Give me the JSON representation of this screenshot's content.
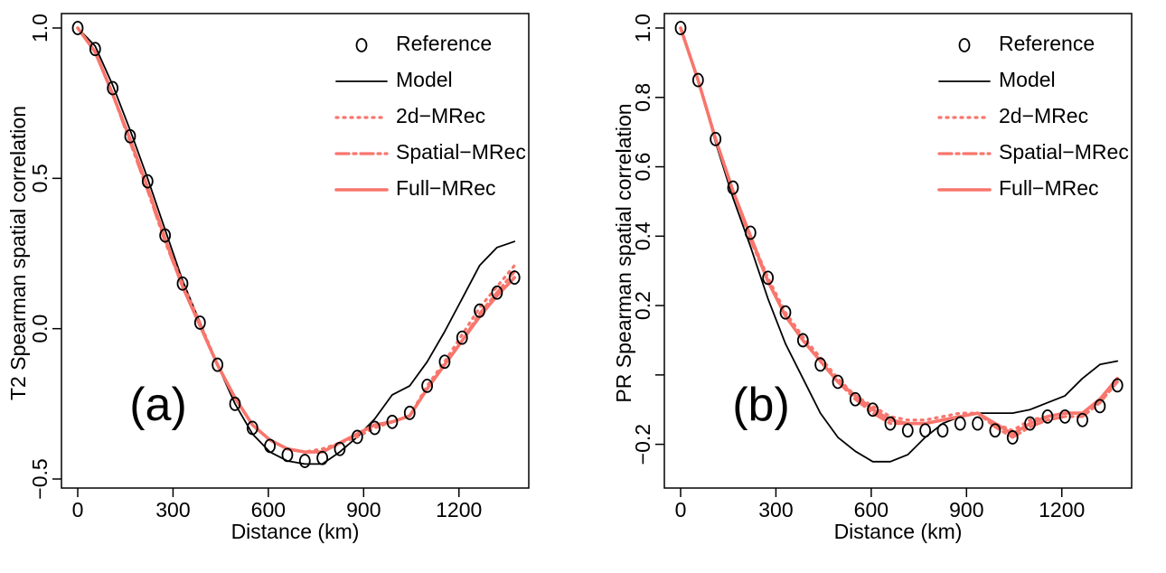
{
  "figure": {
    "legend_labels": [
      "Reference",
      "Model",
      "2d−MRec",
      "Spatial−MRec",
      "Full−MRec"
    ]
  },
  "colors": {
    "reference": "#000000",
    "model": "#000000",
    "mrec": "#F8766D"
  },
  "chart_data": [
    {
      "type": "line",
      "panel_label": "(a)",
      "xlabel": "Distance (km)",
      "ylabel": "T2 Spearman spatial correlation",
      "xlim": [
        0,
        1380
      ],
      "ylim": [
        -0.5,
        1.0
      ],
      "x_ticks": [
        0,
        300,
        600,
        900,
        1200
      ],
      "x_tick_labels": [
        "0",
        "300",
        "600",
        "900",
        "1200"
      ],
      "y_ticks": [
        -0.5,
        0.0,
        0.5,
        1.0
      ],
      "y_tick_labels": [
        "−0.5",
        "0.0",
        "0.5",
        "1.0"
      ],
      "legend_position": "top-right",
      "grid": false,
      "x": [
        0,
        55,
        110,
        165,
        220,
        275,
        330,
        385,
        440,
        495,
        550,
        605,
        660,
        715,
        770,
        825,
        880,
        935,
        990,
        1045,
        1100,
        1155,
        1210,
        1265,
        1320,
        1375
      ],
      "series": [
        {
          "name": "Reference",
          "style": "points",
          "values": [
            1.0,
            0.93,
            0.8,
            0.64,
            0.49,
            0.31,
            0.15,
            0.02,
            -0.12,
            -0.25,
            -0.33,
            -0.39,
            -0.42,
            -0.44,
            -0.43,
            -0.4,
            -0.36,
            -0.33,
            -0.31,
            -0.28,
            -0.19,
            -0.11,
            -0.03,
            0.06,
            0.12,
            0.17
          ]
        },
        {
          "name": "Model",
          "style": "solid-thin",
          "values": [
            1.0,
            0.94,
            0.81,
            0.66,
            0.5,
            0.33,
            0.16,
            0.02,
            -0.12,
            -0.25,
            -0.35,
            -0.41,
            -0.44,
            -0.45,
            -0.45,
            -0.41,
            -0.36,
            -0.3,
            -0.22,
            -0.19,
            -0.11,
            -0.01,
            0.1,
            0.21,
            0.27,
            0.29
          ]
        },
        {
          "name": "2d−MRec",
          "style": "dotted",
          "values": [
            1.0,
            0.92,
            0.78,
            0.63,
            0.47,
            0.3,
            0.15,
            0.02,
            -0.12,
            -0.23,
            -0.32,
            -0.37,
            -0.4,
            -0.41,
            -0.4,
            -0.38,
            -0.36,
            -0.33,
            -0.31,
            -0.29,
            -0.19,
            -0.11,
            -0.02,
            0.07,
            0.14,
            0.21
          ]
        },
        {
          "name": "Spatial−MRec",
          "style": "dashdot",
          "values": [
            1.0,
            0.92,
            0.78,
            0.62,
            0.46,
            0.29,
            0.14,
            0.01,
            -0.12,
            -0.23,
            -0.32,
            -0.37,
            -0.4,
            -0.41,
            -0.41,
            -0.38,
            -0.35,
            -0.32,
            -0.31,
            -0.29,
            -0.2,
            -0.12,
            -0.04,
            0.05,
            0.12,
            0.19
          ]
        },
        {
          "name": "Full−MRec",
          "style": "solid-thick",
          "values": [
            1.0,
            0.92,
            0.78,
            0.63,
            0.47,
            0.3,
            0.14,
            0.01,
            -0.12,
            -0.23,
            -0.32,
            -0.37,
            -0.4,
            -0.41,
            -0.41,
            -0.38,
            -0.35,
            -0.32,
            -0.31,
            -0.29,
            -0.2,
            -0.12,
            -0.04,
            0.04,
            0.11,
            0.17
          ]
        }
      ]
    },
    {
      "type": "line",
      "panel_label": "(b)",
      "xlabel": "Distance (km)",
      "ylabel": "PR Spearman spatial correlation",
      "xlim": [
        0,
        1380
      ],
      "ylim": [
        -0.3,
        1.0
      ],
      "x_ticks": [
        0,
        300,
        600,
        900,
        1200
      ],
      "x_tick_labels": [
        "0",
        "300",
        "600",
        "900",
        "1200"
      ],
      "y_ticks": [
        -0.2,
        0.0,
        0.2,
        0.4,
        0.6,
        0.8,
        1.0
      ],
      "y_tick_labels": [
        "−0.2",
        "",
        "0.2",
        "0.4",
        "0.6",
        "0.8",
        "1.0"
      ],
      "legend_position": "top-right",
      "grid": false,
      "x": [
        0,
        55,
        110,
        165,
        220,
        275,
        330,
        385,
        440,
        495,
        550,
        605,
        660,
        715,
        770,
        825,
        880,
        935,
        990,
        1045,
        1100,
        1155,
        1210,
        1265,
        1320,
        1375
      ],
      "series": [
        {
          "name": "Reference",
          "style": "points",
          "values": [
            1.0,
            0.85,
            0.68,
            0.54,
            0.41,
            0.28,
            0.18,
            0.1,
            0.03,
            -0.02,
            -0.07,
            -0.1,
            -0.14,
            -0.16,
            -0.16,
            -0.16,
            -0.14,
            -0.14,
            -0.16,
            -0.18,
            -0.14,
            -0.12,
            -0.12,
            -0.13,
            -0.09,
            -0.03
          ]
        },
        {
          "name": "Model",
          "style": "solid-thin",
          "values": [
            1.0,
            0.85,
            0.67,
            0.51,
            0.37,
            0.22,
            0.09,
            -0.01,
            -0.11,
            -0.18,
            -0.22,
            -0.25,
            -0.25,
            -0.23,
            -0.18,
            -0.14,
            -0.12,
            -0.11,
            -0.11,
            -0.11,
            -0.1,
            -0.08,
            -0.06,
            -0.01,
            0.03,
            0.04
          ]
        },
        {
          "name": "2d−MRec",
          "style": "dotted",
          "values": [
            1.0,
            0.85,
            0.68,
            0.53,
            0.4,
            0.28,
            0.18,
            0.11,
            0.05,
            -0.01,
            -0.06,
            -0.09,
            -0.12,
            -0.13,
            -0.13,
            -0.12,
            -0.11,
            -0.11,
            -0.14,
            -0.16,
            -0.13,
            -0.12,
            -0.11,
            -0.11,
            -0.07,
            -0.01
          ]
        },
        {
          "name": "Spatial−MRec",
          "style": "dashdot",
          "values": [
            1.0,
            0.85,
            0.68,
            0.53,
            0.39,
            0.27,
            0.17,
            0.1,
            0.04,
            -0.02,
            -0.07,
            -0.11,
            -0.14,
            -0.14,
            -0.14,
            -0.13,
            -0.12,
            -0.11,
            -0.15,
            -0.18,
            -0.15,
            -0.13,
            -0.12,
            -0.12,
            -0.08,
            -0.02
          ]
        },
        {
          "name": "Full−MRec",
          "style": "solid-thick",
          "values": [
            1.0,
            0.85,
            0.68,
            0.53,
            0.4,
            0.27,
            0.17,
            0.1,
            0.04,
            -0.02,
            -0.06,
            -0.1,
            -0.13,
            -0.14,
            -0.14,
            -0.13,
            -0.12,
            -0.11,
            -0.14,
            -0.17,
            -0.14,
            -0.12,
            -0.11,
            -0.11,
            -0.07,
            -0.01
          ]
        }
      ]
    }
  ]
}
